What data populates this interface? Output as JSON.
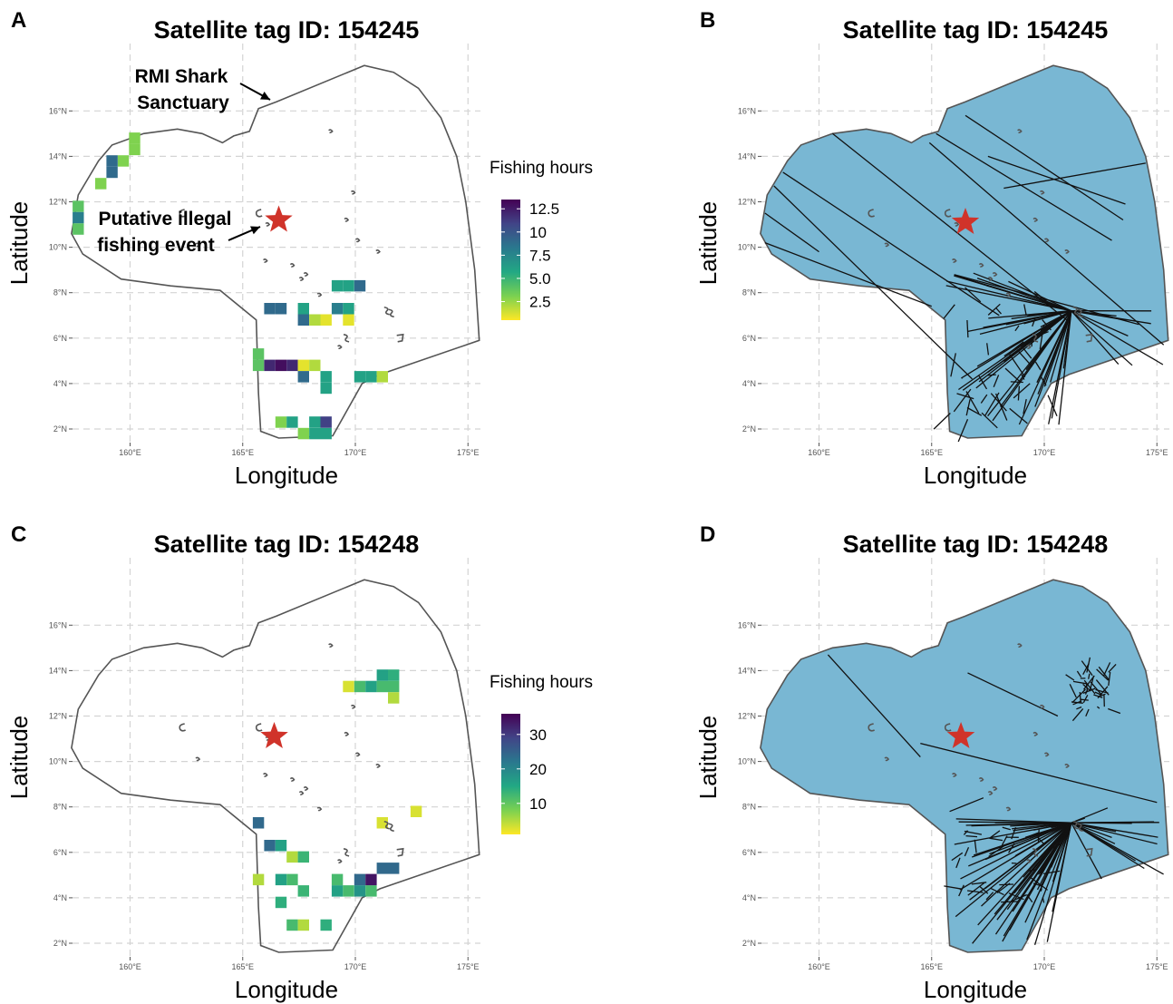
{
  "figure": {
    "panels": [
      {
        "letter": "A",
        "title": "Satellite tag ID: 154245",
        "kind": "heatmap",
        "xlabel": "Longitude",
        "ylabel": "Latitude",
        "annotations": [
          {
            "lines": [
              "RMI Shark",
              "Sanctuary"
            ]
          },
          {
            "lines": [
              "Putative illegal",
              "fishing event"
            ]
          }
        ]
      },
      {
        "letter": "B",
        "title": "Satellite tag ID: 154245",
        "kind": "tracks",
        "xlabel": "Longitude",
        "ylabel": "Latitude"
      },
      {
        "letter": "C",
        "title": "Satellite tag ID: 154248",
        "kind": "heatmap",
        "xlabel": "Longitude",
        "ylabel": "Latitude"
      },
      {
        "letter": "D",
        "title": "Satellite tag ID: 154248",
        "kind": "tracks",
        "xlabel": "Longitude",
        "ylabel": "Latitude"
      }
    ],
    "x_ticks": [
      "160°E",
      "165°E",
      "170°E",
      "175°E"
    ],
    "y_ticks": [
      "2°N",
      "4°N",
      "6°N",
      "8°N",
      "10°N",
      "12°N",
      "14°N",
      "16°N"
    ],
    "legends": [
      {
        "title": "Fishing hours",
        "ticks": [
          "12.5",
          "10",
          "7.5",
          "5.0",
          "2.5"
        ]
      },
      {
        "title": "Fishing hours",
        "ticks": [
          "30",
          "20",
          "10"
        ]
      }
    ],
    "colors": {
      "zone_fill_tracks": "#79b7d3",
      "star": "#d0332a",
      "grid": "#d4d4d4",
      "viridis": [
        "#fde725",
        "#7ad151",
        "#22a884",
        "#2a788e",
        "#414487",
        "#440154"
      ]
    }
  },
  "chart_data": [
    {
      "panel": "A",
      "type": "heatmap",
      "title": "Satellite tag ID: 154245",
      "xlabel": "Longitude",
      "ylabel": "Latitude",
      "xlim": [
        157.3,
        175.5
      ],
      "ylim": [
        1.6,
        17.8
      ],
      "colorbar": {
        "title": "Fishing hours",
        "min": 0.5,
        "max": 13.5
      },
      "star": {
        "lon": 166.6,
        "lat": 11.2
      },
      "cells": [
        [
          160.2,
          14.8,
          3
        ],
        [
          160.2,
          14.3,
          3
        ],
        [
          159.7,
          13.8,
          3
        ],
        [
          159.2,
          13.8,
          9
        ],
        [
          159.2,
          13.3,
          9
        ],
        [
          158.7,
          12.8,
          3
        ],
        [
          157.7,
          11.8,
          4
        ],
        [
          157.7,
          11.3,
          8
        ],
        [
          157.7,
          10.8,
          4
        ],
        [
          166.2,
          7.3,
          9
        ],
        [
          166.7,
          7.3,
          9
        ],
        [
          167.7,
          7.3,
          6
        ],
        [
          168.2,
          6.8,
          2
        ],
        [
          168.7,
          6.8,
          1
        ],
        [
          169.2,
          7.3,
          8
        ],
        [
          169.7,
          7.3,
          6
        ],
        [
          167.7,
          6.8,
          9
        ],
        [
          169.7,
          6.8,
          1
        ],
        [
          169.2,
          8.3,
          6
        ],
        [
          169.7,
          8.3,
          6
        ],
        [
          170.2,
          8.3,
          9
        ],
        [
          165.7,
          4.8,
          4
        ],
        [
          166.2,
          4.8,
          12
        ],
        [
          166.7,
          4.8,
          13
        ],
        [
          167.2,
          4.8,
          12
        ],
        [
          167.7,
          4.8,
          1
        ],
        [
          168.2,
          4.8,
          2
        ],
        [
          167.7,
          4.3,
          9
        ],
        [
          168.7,
          4.3,
          6
        ],
        [
          168.7,
          3.8,
          6
        ],
        [
          170.2,
          4.3,
          6
        ],
        [
          170.7,
          4.3,
          6
        ],
        [
          171.2,
          4.3,
          2
        ],
        [
          166.7,
          2.3,
          3
        ],
        [
          167.2,
          2.3,
          6
        ],
        [
          167.7,
          1.8,
          3
        ],
        [
          168.2,
          1.8,
          6
        ],
        [
          168.7,
          1.8,
          6
        ],
        [
          168.2,
          2.3,
          6
        ],
        [
          168.7,
          2.3,
          11
        ],
        [
          165.7,
          5.3,
          4
        ]
      ]
    },
    {
      "panel": "C",
      "type": "heatmap",
      "title": "Satellite tag ID: 154248",
      "xlabel": "Longitude",
      "ylabel": "Latitude",
      "xlim": [
        157.3,
        175.5
      ],
      "ylim": [
        1.6,
        17.8
      ],
      "colorbar": {
        "title": "Fishing hours",
        "min": 1,
        "max": 36
      },
      "star": {
        "lon": 166.4,
        "lat": 11.1
      },
      "cells": [
        [
          169.7,
          13.3,
          3
        ],
        [
          170.2,
          13.3,
          12
        ],
        [
          170.7,
          13.3,
          16
        ],
        [
          171.2,
          13.3,
          12
        ],
        [
          171.7,
          13.3,
          12
        ],
        [
          171.2,
          13.8,
          16
        ],
        [
          171.7,
          13.8,
          14
        ],
        [
          171.7,
          12.8,
          5
        ],
        [
          172.7,
          7.8,
          3
        ],
        [
          171.2,
          7.3,
          3
        ],
        [
          165.7,
          7.3,
          24
        ],
        [
          166.2,
          6.3,
          24
        ],
        [
          166.7,
          6.3,
          16
        ],
        [
          167.2,
          5.8,
          5
        ],
        [
          167.7,
          5.8,
          13
        ],
        [
          165.7,
          4.8,
          5
        ],
        [
          166.7,
          4.8,
          16
        ],
        [
          167.2,
          4.8,
          12
        ],
        [
          167.7,
          4.3,
          13
        ],
        [
          166.7,
          3.8,
          14
        ],
        [
          167.2,
          2.8,
          12
        ],
        [
          167.7,
          2.8,
          5
        ],
        [
          168.7,
          2.8,
          14
        ],
        [
          169.2,
          4.3,
          16
        ],
        [
          169.7,
          4.3,
          12
        ],
        [
          170.2,
          4.3,
          18
        ],
        [
          170.7,
          4.3,
          12
        ],
        [
          170.2,
          4.8,
          24
        ],
        [
          170.7,
          4.8,
          34
        ],
        [
          171.2,
          5.3,
          24
        ],
        [
          171.7,
          5.3,
          24
        ],
        [
          169.2,
          4.8,
          12
        ]
      ]
    },
    {
      "panel": "B",
      "type": "line",
      "title": "Satellite tag ID: 154245",
      "xlabel": "Longitude",
      "ylabel": "Latitude",
      "xlim": [
        157.3,
        175.5
      ],
      "ylim": [
        1.6,
        17.8
      ],
      "star": {
        "lon": 166.5,
        "lat": 11.1
      },
      "hub": {
        "lon": 171.2,
        "lat": 7.2
      }
    },
    {
      "panel": "D",
      "type": "line",
      "title": "Satellite tag ID: 154248",
      "xlabel": "Longitude",
      "ylabel": "Latitude",
      "xlim": [
        157.3,
        175.5
      ],
      "ylim": [
        1.6,
        17.8
      ],
      "star": {
        "lon": 166.3,
        "lat": 11.1
      },
      "hub": {
        "lon": 171.2,
        "lat": 7.3
      }
    }
  ]
}
